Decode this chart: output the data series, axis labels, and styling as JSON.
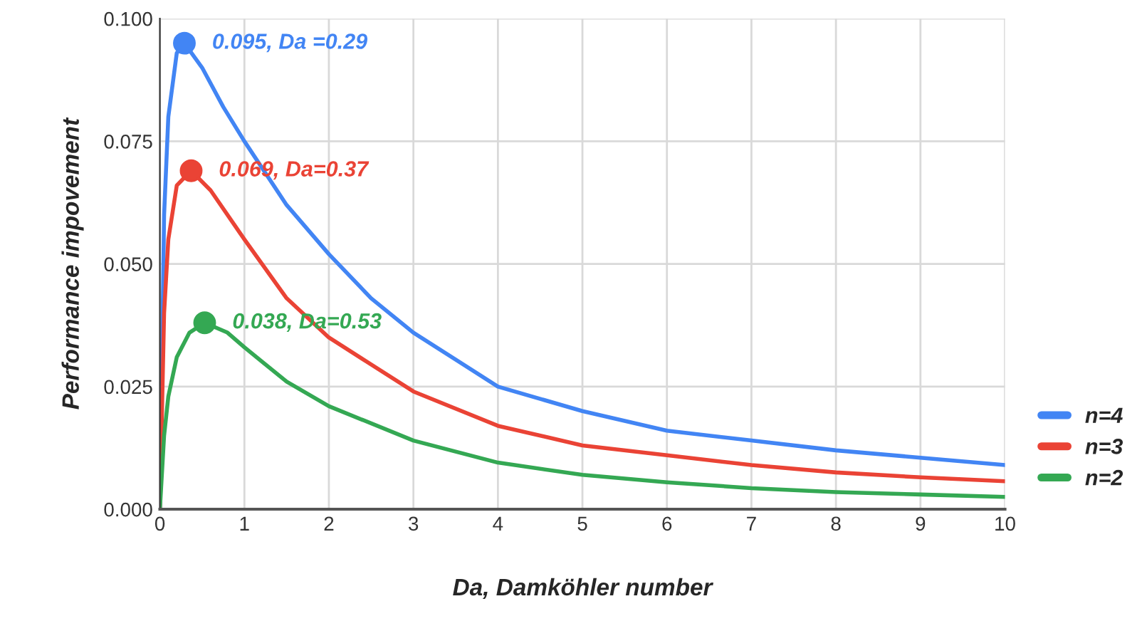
{
  "chart_data": {
    "type": "line",
    "xlabel": "Da, Damköhler number",
    "ylabel": "Performance impovement",
    "xlim": [
      0,
      10
    ],
    "ylim": [
      0,
      0.1
    ],
    "xticks": [
      0,
      1,
      2,
      3,
      4,
      5,
      6,
      7,
      8,
      9,
      10
    ],
    "yticks": [
      {
        "value": 0,
        "label": "0.000"
      },
      {
        "value": 0.025,
        "label": "0.025"
      },
      {
        "value": 0.05,
        "label": "0.050"
      },
      {
        "value": 0.075,
        "label": "0.075"
      },
      {
        "value": 0.1,
        "label": "0.100"
      }
    ],
    "grid": true,
    "legend": "right",
    "series": [
      {
        "name": "n=4",
        "color": "#4285f4",
        "x": [
          0,
          0.05,
          0.1,
          0.2,
          0.29,
          0.5,
          0.75,
          1,
          1.5,
          2,
          2.5,
          3,
          4,
          5,
          6,
          7,
          8,
          9,
          10
        ],
        "values": [
          0,
          0.06,
          0.08,
          0.093,
          0.095,
          0.09,
          0.082,
          0.075,
          0.062,
          0.052,
          0.043,
          0.036,
          0.025,
          0.02,
          0.016,
          0.014,
          0.012,
          0.0105,
          0.009
        ]
      },
      {
        "name": "n=3",
        "color": "#ea4335",
        "x": [
          0,
          0.05,
          0.1,
          0.2,
          0.37,
          0.6,
          1,
          1.5,
          2,
          3,
          4,
          5,
          6,
          7,
          8,
          9,
          10
        ],
        "values": [
          0,
          0.04,
          0.055,
          0.066,
          0.069,
          0.065,
          0.055,
          0.043,
          0.035,
          0.024,
          0.017,
          0.013,
          0.011,
          0.009,
          0.0075,
          0.0065,
          0.0057
        ]
      },
      {
        "name": "n=2",
        "color": "#34a853",
        "x": [
          0,
          0.05,
          0.1,
          0.2,
          0.35,
          0.53,
          0.8,
          1,
          1.5,
          2,
          3,
          4,
          5,
          6,
          7,
          8,
          9,
          10
        ],
        "values": [
          0,
          0.015,
          0.023,
          0.031,
          0.036,
          0.038,
          0.036,
          0.033,
          0.026,
          0.021,
          0.014,
          0.0095,
          0.007,
          0.0055,
          0.0043,
          0.0035,
          0.003,
          0.0025
        ]
      },
      {
        "type": "scatter",
        "color": "#4285f4",
        "x": [
          0.29
        ],
        "values": [
          0.095
        ]
      },
      {
        "type": "scatter",
        "color": "#ea4335",
        "x": [
          0.37
        ],
        "values": [
          0.069
        ]
      },
      {
        "type": "scatter",
        "color": "#34a853",
        "x": [
          0.53
        ],
        "values": [
          0.038
        ]
      }
    ],
    "annotations": [
      {
        "text": "0.095, Da =0.29",
        "x": 0.29,
        "y": 0.095
      },
      {
        "text": "0.069, Da=0.37",
        "x": 0.37,
        "y": 0.069
      },
      {
        "text": "0.038, Da=0.53",
        "x": 0.53,
        "y": 0.038
      }
    ]
  }
}
